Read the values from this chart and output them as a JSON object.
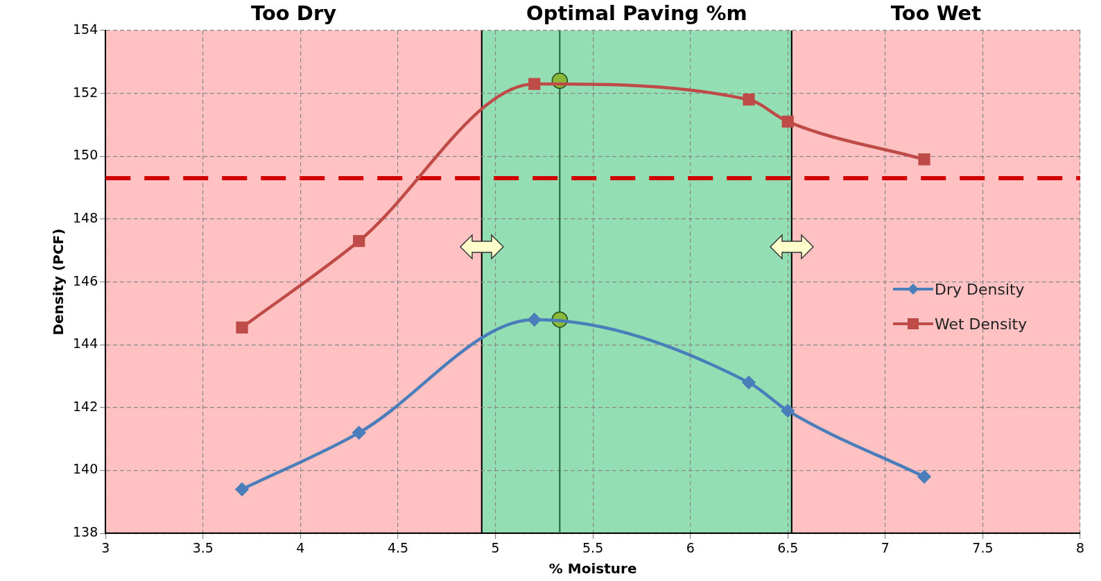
{
  "chart_data": {
    "type": "line",
    "xlabel": "% Moisture",
    "ylabel": "Density (PCF)",
    "xlim": [
      3,
      8
    ],
    "xticks": [
      3,
      3.5,
      4,
      4.5,
      5,
      5.5,
      6,
      6.5,
      7,
      7.5,
      8
    ],
    "ylim": [
      138,
      154
    ],
    "yticks": [
      138,
      140,
      142,
      144,
      146,
      148,
      150,
      152,
      154
    ],
    "grid": true,
    "legend": "right",
    "line_style": "solid",
    "series": [
      {
        "name": "Dry Density",
        "color": "#4a7ebb",
        "marker": "diamond",
        "x": [
          3.7,
          4.3,
          5.2,
          6.3,
          6.5,
          7.2
        ],
        "values": [
          139.4,
          141.2,
          144.8,
          142.8,
          141.9,
          139.8
        ]
      },
      {
        "name": "Wet Density",
        "color": "#be4b48",
        "marker": "square",
        "x": [
          3.7,
          4.3,
          5.2,
          6.3,
          6.5,
          7.2
        ],
        "values": [
          144.55,
          147.3,
          152.3,
          151.8,
          151.1,
          149.9
        ]
      },
      {
        "type": "scatter",
        "color": "#8cb83a",
        "marker": "circle",
        "x": [
          5.33,
          5.33
        ],
        "values": [
          152.4,
          144.8
        ]
      }
    ],
    "bands": [
      {
        "axis": "x",
        "from": 3,
        "to": 4.93,
        "label": "Too Dry",
        "color": "#ffc1c1"
      },
      {
        "axis": "x",
        "from": 4.93,
        "to": 6.52,
        "label": "Optimal Paving %m",
        "color": "#93dfb3"
      },
      {
        "axis": "x",
        "from": 6.52,
        "to": 8,
        "label": "Too Wet",
        "color": "#ffc1c1"
      }
    ],
    "ref_lines": [
      {
        "axis": "y",
        "value": 149.3,
        "color": "#d00000",
        "line_style": "dashed"
      },
      {
        "axis": "x",
        "value": 5.33,
        "color": "#1e5e32",
        "line_style": "solid"
      }
    ]
  }
}
